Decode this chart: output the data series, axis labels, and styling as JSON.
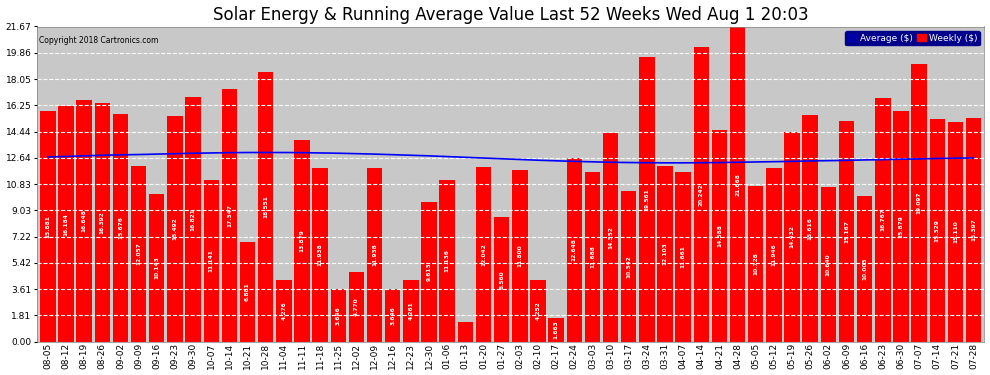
{
  "title": "Solar Energy & Running Average Value Last 52 Weeks Wed Aug 1 20:03",
  "copyright": "Copyright 2018 Cartronics.com",
  "legend_labels": [
    "Average ($)",
    "Weekly ($)"
  ],
  "bar_color": "#FF0000",
  "avg_line_color": "#0000FF",
  "background_color": "#FFFFFF",
  "plot_bg_color": "#C8C8C8",
  "grid_color": "#FFFFFF",
  "ylim": [
    0,
    21.67
  ],
  "yticks": [
    0.0,
    1.81,
    3.61,
    5.42,
    7.22,
    9.03,
    10.83,
    12.64,
    14.44,
    16.25,
    18.05,
    19.86,
    21.67
  ],
  "categories": [
    "08-05",
    "08-12",
    "08-19",
    "08-26",
    "09-02",
    "09-09",
    "09-16",
    "09-23",
    "09-30",
    "10-07",
    "10-14",
    "10-21",
    "10-28",
    "11-04",
    "11-11",
    "11-18",
    "11-25",
    "12-02",
    "12-09",
    "12-16",
    "12-23",
    "12-30",
    "01-06",
    "01-13",
    "01-20",
    "01-27",
    "02-03",
    "02-10",
    "02-17",
    "02-24",
    "03-03",
    "03-10",
    "03-17",
    "03-24",
    "03-31",
    "04-07",
    "04-14",
    "04-21",
    "04-28",
    "05-05",
    "05-12",
    "05-19",
    "05-26",
    "06-02",
    "06-09",
    "06-16",
    "06-23",
    "06-30",
    "07-07",
    "07-14",
    "07-21",
    "07-28"
  ],
  "values": [
    15.881,
    16.184,
    16.648,
    16.392,
    15.676,
    12.057,
    10.143,
    15.492,
    16.821,
    11.141,
    17.347,
    6.881,
    18.551,
    4.276,
    13.879,
    11.938,
    3.646,
    4.77,
    11.938,
    3.646,
    4.261,
    9.613,
    11.136,
    1.393,
    12.042,
    8.56,
    11.8,
    4.252,
    1.663,
    12.648,
    11.688,
    14.352,
    10.342,
    19.561,
    12.103,
    11.661,
    20.242,
    14.588,
    21.668,
    10.728,
    11.946,
    14.432,
    15.616,
    10.64,
    15.167,
    10.003,
    16.767,
    15.879,
    19.097,
    15.329,
    15.11,
    15.397
  ],
  "avg_values": [
    12.7,
    12.74,
    12.78,
    12.82,
    12.85,
    12.87,
    12.9,
    12.93,
    12.96,
    12.98,
    13.0,
    13.01,
    13.01,
    13.01,
    13.0,
    12.98,
    12.96,
    12.93,
    12.9,
    12.86,
    12.82,
    12.78,
    12.73,
    12.68,
    12.63,
    12.58,
    12.53,
    12.48,
    12.44,
    12.4,
    12.37,
    12.34,
    12.32,
    12.31,
    12.3,
    12.3,
    12.31,
    12.32,
    12.34,
    12.36,
    12.38,
    12.4,
    12.43,
    12.45,
    12.47,
    12.5,
    12.52,
    12.55,
    12.57,
    12.6,
    12.62,
    12.64
  ],
  "title_fontsize": 12,
  "tick_fontsize": 6.5,
  "label_fontsize": 7
}
